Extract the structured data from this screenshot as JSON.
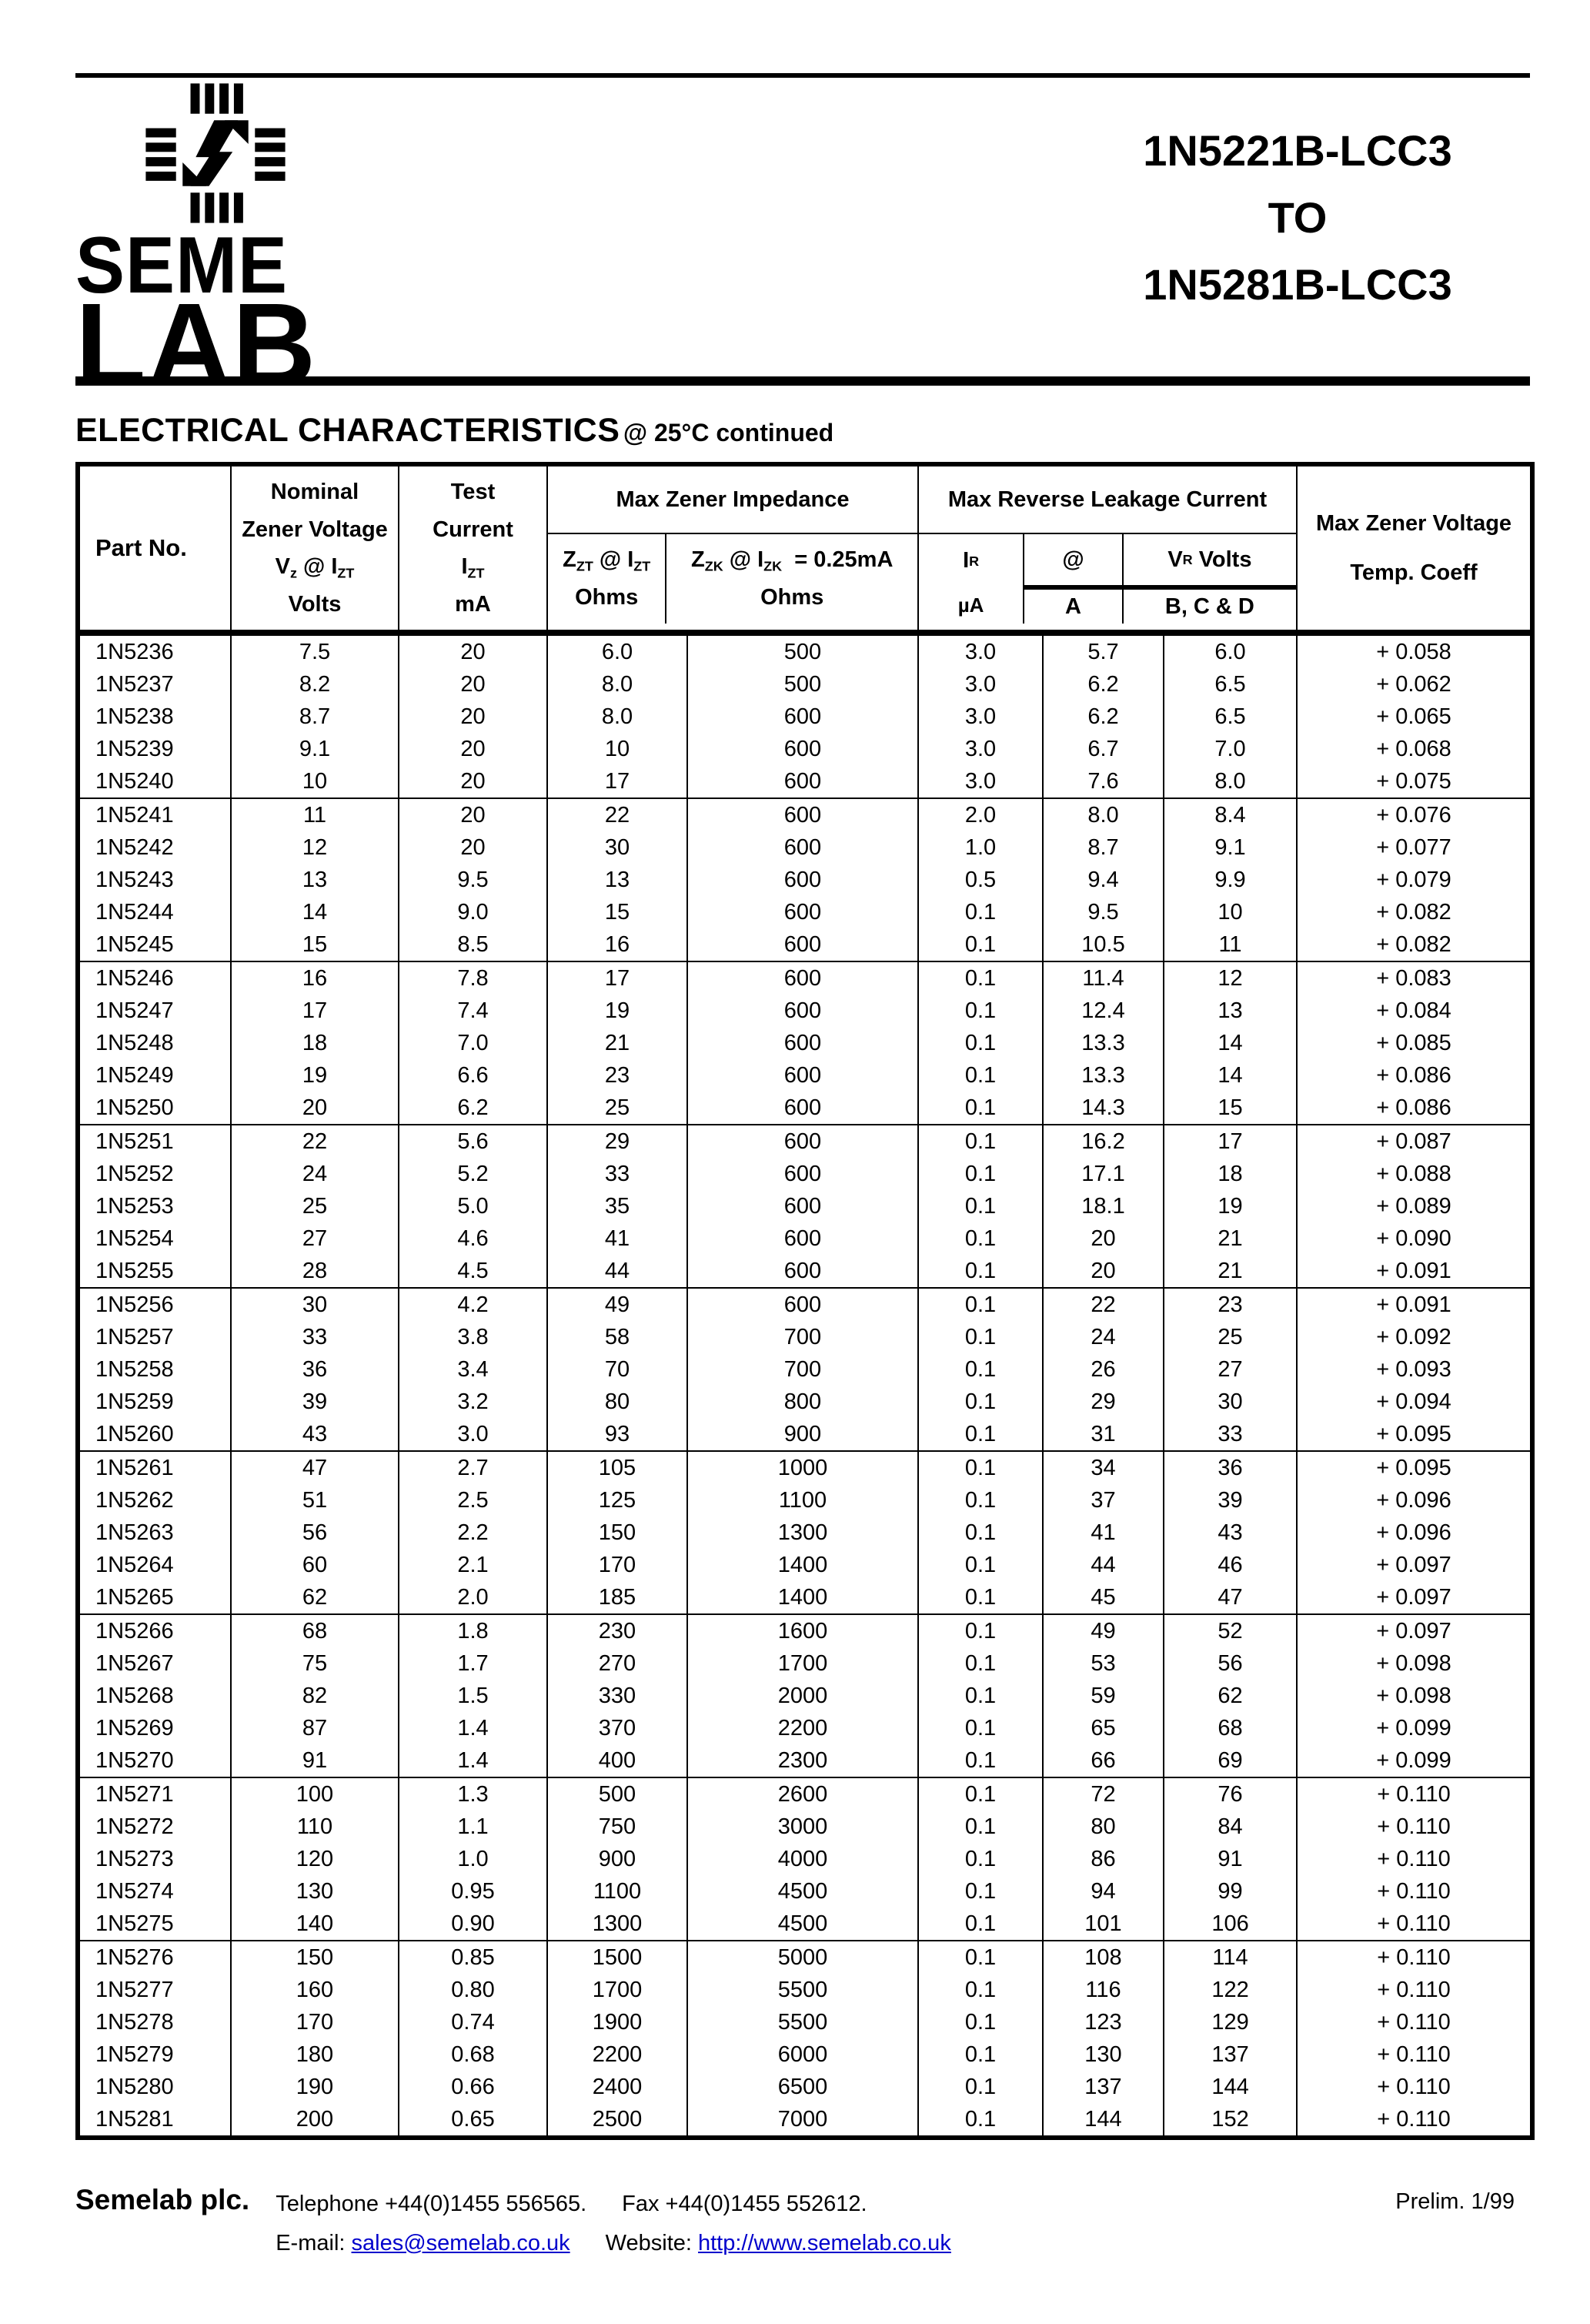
{
  "page": {
    "logo_seme": "SEME",
    "logo_lab": "LAB",
    "title_line1": "1N5221B-LCC3",
    "title_line2": "TO",
    "title_line3": "1N5281B-LCC3",
    "heading": "ELECTRICAL CHARACTERISTICS",
    "heading_suffix": "@ 25°C continued"
  },
  "colors": {
    "ink": "#000000",
    "paper": "#ffffff",
    "link": "#0000cc"
  },
  "table": {
    "header": {
      "part_no": "Part No.",
      "nominal_line1": "Nominal",
      "nominal_line2": "Zener Voltage",
      "vz_p1": "V",
      "vz_s1": "z",
      "vz_p2": " @ I",
      "vz_s2": "ZT",
      "volts": "Volts",
      "test_line1": "Test",
      "test_line2": "Current",
      "izt_p1": "I",
      "izt_s1": "ZT",
      "ma": "mA",
      "impedance_group": "Max Zener Impedance",
      "zzt_p1": "Z",
      "zzt_s1": "ZT",
      "zzt_p2": " @ I",
      "zzt_s2": "ZT",
      "zzt_unit": "Ohms",
      "zzk_p1": "Z",
      "zzk_s1": "ZK",
      "zzk_p2": " @ I",
      "zzk_s2": "ZK",
      "zzk_p3": "  = 0.25mA",
      "zzk_unit": "Ohms",
      "leakage_group": "Max Reverse Leakage Current",
      "ir_p1": "I",
      "ir_s1": "R",
      "ir_unit": "µA",
      "at_symbol": "@",
      "at_unit": "A",
      "vr_p1": "V",
      "vr_s1": "R",
      "vr_p2": " Volts",
      "vr_unit": "B, C & D",
      "temp_line1": "Max Zener Voltage",
      "temp_line2": "Temp. Coeff"
    },
    "rows": [
      [
        "1N5236",
        "7.5",
        "20",
        "6.0",
        "500",
        "3.0",
        "5.7",
        "6.0",
        "+ 0.058"
      ],
      [
        "1N5237",
        "8.2",
        "20",
        "8.0",
        "500",
        "3.0",
        "6.2",
        "6.5",
        "+ 0.062"
      ],
      [
        "1N5238",
        "8.7",
        "20",
        "8.0",
        "600",
        "3.0",
        "6.2",
        "6.5",
        "+ 0.065"
      ],
      [
        "1N5239",
        "9.1",
        "20",
        "10",
        "600",
        "3.0",
        "6.7",
        "7.0",
        "+ 0.068"
      ],
      [
        "1N5240",
        "10",
        "20",
        "17",
        "600",
        "3.0",
        "7.6",
        "8.0",
        "+ 0.075"
      ],
      [
        "1N5241",
        "11",
        "20",
        "22",
        "600",
        "2.0",
        "8.0",
        "8.4",
        "+ 0.076"
      ],
      [
        "1N5242",
        "12",
        "20",
        "30",
        "600",
        "1.0",
        "8.7",
        "9.1",
        "+ 0.077"
      ],
      [
        "1N5243",
        "13",
        "9.5",
        "13",
        "600",
        "0.5",
        "9.4",
        "9.9",
        "+ 0.079"
      ],
      [
        "1N5244",
        "14",
        "9.0",
        "15",
        "600",
        "0.1",
        "9.5",
        "10",
        "+ 0.082"
      ],
      [
        "1N5245",
        "15",
        "8.5",
        "16",
        "600",
        "0.1",
        "10.5",
        "11",
        "+ 0.082"
      ],
      [
        "1N5246",
        "16",
        "7.8",
        "17",
        "600",
        "0.1",
        "11.4",
        "12",
        "+ 0.083"
      ],
      [
        "1N5247",
        "17",
        "7.4",
        "19",
        "600",
        "0.1",
        "12.4",
        "13",
        "+ 0.084"
      ],
      [
        "1N5248",
        "18",
        "7.0",
        "21",
        "600",
        "0.1",
        "13.3",
        "14",
        "+ 0.085"
      ],
      [
        "1N5249",
        "19",
        "6.6",
        "23",
        "600",
        "0.1",
        "13.3",
        "14",
        "+ 0.086"
      ],
      [
        "1N5250",
        "20",
        "6.2",
        "25",
        "600",
        "0.1",
        "14.3",
        "15",
        "+ 0.086"
      ],
      [
        "1N5251",
        "22",
        "5.6",
        "29",
        "600",
        "0.1",
        "16.2",
        "17",
        "+ 0.087"
      ],
      [
        "1N5252",
        "24",
        "5.2",
        "33",
        "600",
        "0.1",
        "17.1",
        "18",
        "+ 0.088"
      ],
      [
        "1N5253",
        "25",
        "5.0",
        "35",
        "600",
        "0.1",
        "18.1",
        "19",
        "+ 0.089"
      ],
      [
        "1N5254",
        "27",
        "4.6",
        "41",
        "600",
        "0.1",
        "20",
        "21",
        "+ 0.090"
      ],
      [
        "1N5255",
        "28",
        "4.5",
        "44",
        "600",
        "0.1",
        "20",
        "21",
        "+ 0.091"
      ],
      [
        "1N5256",
        "30",
        "4.2",
        "49",
        "600",
        "0.1",
        "22",
        "23",
        "+ 0.091"
      ],
      [
        "1N5257",
        "33",
        "3.8",
        "58",
        "700",
        "0.1",
        "24",
        "25",
        "+ 0.092"
      ],
      [
        "1N5258",
        "36",
        "3.4",
        "70",
        "700",
        "0.1",
        "26",
        "27",
        "+ 0.093"
      ],
      [
        "1N5259",
        "39",
        "3.2",
        "80",
        "800",
        "0.1",
        "29",
        "30",
        "+ 0.094"
      ],
      [
        "1N5260",
        "43",
        "3.0",
        "93",
        "900",
        "0.1",
        "31",
        "33",
        "+ 0.095"
      ],
      [
        "1N5261",
        "47",
        "2.7",
        "105",
        "1000",
        "0.1",
        "34",
        "36",
        "+ 0.095"
      ],
      [
        "1N5262",
        "51",
        "2.5",
        "125",
        "1100",
        "0.1",
        "37",
        "39",
        "+ 0.096"
      ],
      [
        "1N5263",
        "56",
        "2.2",
        "150",
        "1300",
        "0.1",
        "41",
        "43",
        "+ 0.096"
      ],
      [
        "1N5264",
        "60",
        "2.1",
        "170",
        "1400",
        "0.1",
        "44",
        "46",
        "+ 0.097"
      ],
      [
        "1N5265",
        "62",
        "2.0",
        "185",
        "1400",
        "0.1",
        "45",
        "47",
        "+ 0.097"
      ],
      [
        "1N5266",
        "68",
        "1.8",
        "230",
        "1600",
        "0.1",
        "49",
        "52",
        "+ 0.097"
      ],
      [
        "1N5267",
        "75",
        "1.7",
        "270",
        "1700",
        "0.1",
        "53",
        "56",
        "+ 0.098"
      ],
      [
        "1N5268",
        "82",
        "1.5",
        "330",
        "2000",
        "0.1",
        "59",
        "62",
        "+ 0.098"
      ],
      [
        "1N5269",
        "87",
        "1.4",
        "370",
        "2200",
        "0.1",
        "65",
        "68",
        "+ 0.099"
      ],
      [
        "1N5270",
        "91",
        "1.4",
        "400",
        "2300",
        "0.1",
        "66",
        "69",
        "+ 0.099"
      ],
      [
        "1N5271",
        "100",
        "1.3",
        "500",
        "2600",
        "0.1",
        "72",
        "76",
        "+ 0.110"
      ],
      [
        "1N5272",
        "110",
        "1.1",
        "750",
        "3000",
        "0.1",
        "80",
        "84",
        "+ 0.110"
      ],
      [
        "1N5273",
        "120",
        "1.0",
        "900",
        "4000",
        "0.1",
        "86",
        "91",
        "+ 0.110"
      ],
      [
        "1N5274",
        "130",
        "0.95",
        "1100",
        "4500",
        "0.1",
        "94",
        "99",
        "+ 0.110"
      ],
      [
        "1N5275",
        "140",
        "0.90",
        "1300",
        "4500",
        "0.1",
        "101",
        "106",
        "+ 0.110"
      ],
      [
        "1N5276",
        "150",
        "0.85",
        "1500",
        "5000",
        "0.1",
        "108",
        "114",
        "+ 0.110"
      ],
      [
        "1N5277",
        "160",
        "0.80",
        "1700",
        "5500",
        "0.1",
        "116",
        "122",
        "+ 0.110"
      ],
      [
        "1N5278",
        "170",
        "0.74",
        "1900",
        "5500",
        "0.1",
        "123",
        "129",
        "+ 0.110"
      ],
      [
        "1N5279",
        "180",
        "0.68",
        "2200",
        "6000",
        "0.1",
        "130",
        "137",
        "+ 0.110"
      ],
      [
        "1N5280",
        "190",
        "0.66",
        "2400",
        "6500",
        "0.1",
        "137",
        "144",
        "+ 0.110"
      ],
      [
        "1N5281",
        "200",
        "0.65",
        "2500",
        "7000",
        "0.1",
        "144",
        "152",
        "+ 0.110"
      ]
    ]
  },
  "footer": {
    "company": "Semelab plc.",
    "telephone": "Telephone +44(0)1455 556565.",
    "fax": "Fax +44(0)1455 552612.",
    "email_label": "E-mail:",
    "email": "sales@semelab.co.uk",
    "website_label": "Website:",
    "website": "http://www.semelab.co.uk",
    "prelim": "Prelim. 1/99"
  }
}
